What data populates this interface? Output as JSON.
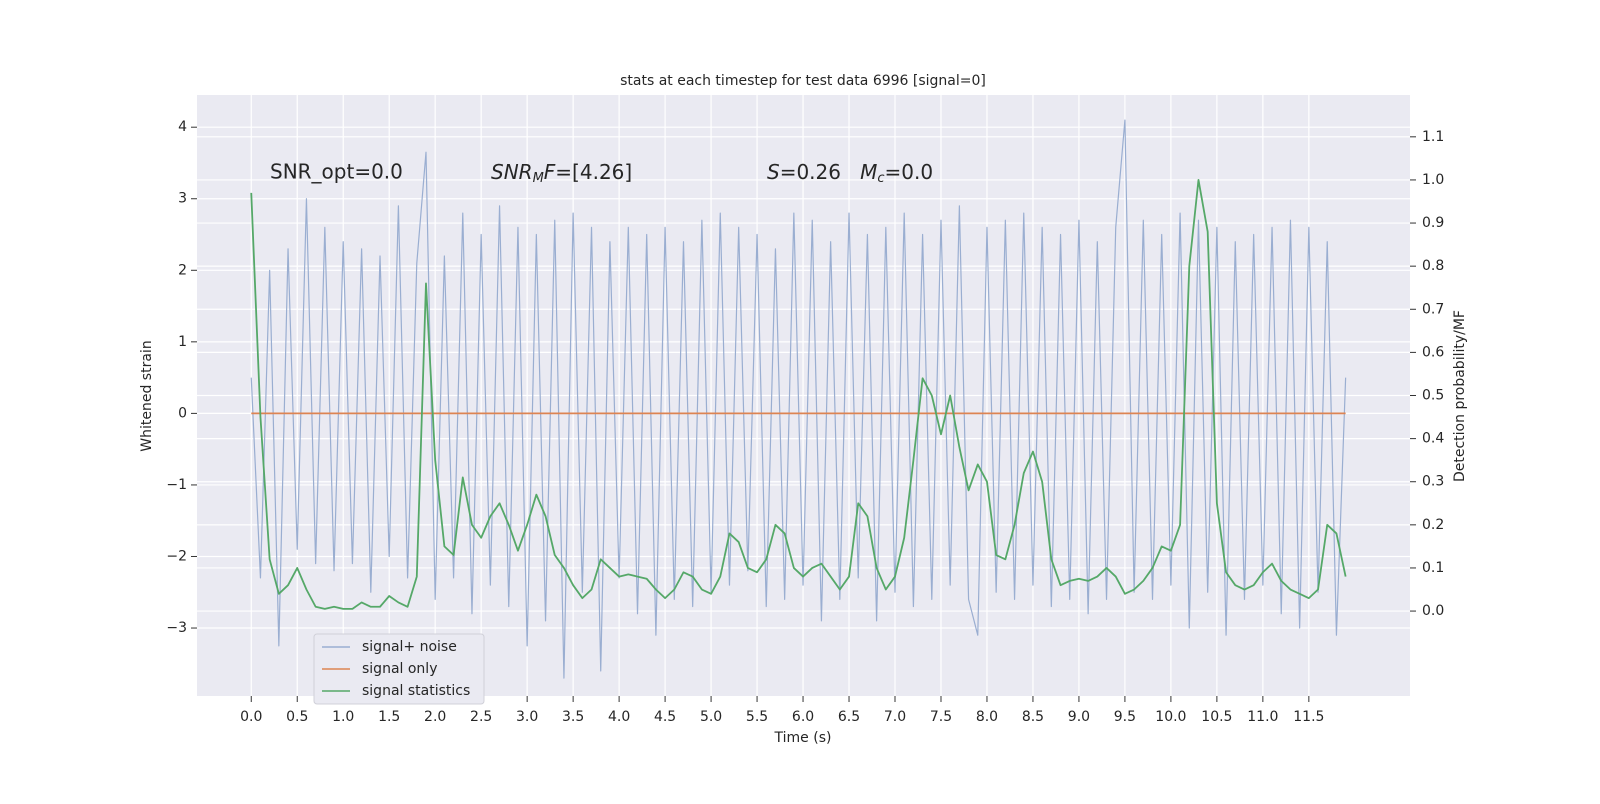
{
  "chart_data": {
    "type": "line",
    "title": "stats at each timestep for test data 6996 [signal=0]",
    "xlabel": "Time (s)",
    "ylabel": "Whitened strain",
    "y2label": "Detection probability/MF",
    "annotations": [
      "SNR_opt=0.0",
      [
        "SNR",
        "M",
        "F",
        "=[4.26]"
      ],
      [
        "S",
        "=0.26   ",
        "M",
        "c",
        "=0.0"
      ]
    ],
    "grid": true,
    "xlim": [
      -0.59,
      12.6
    ],
    "ylim": [
      -3.95,
      4.45
    ],
    "y2lim": [
      -0.197,
      1.197
    ],
    "xticks": [
      {
        "value": 0,
        "label": "0.0"
      },
      0.5,
      {
        "value": 1,
        "label": "1.0"
      },
      1.5,
      {
        "value": 2,
        "label": "2.0"
      },
      2.5,
      {
        "value": 3,
        "label": "3.0"
      },
      3.5,
      {
        "value": 4,
        "label": "4.0"
      },
      4.5,
      {
        "value": 5,
        "label": "5.0"
      },
      5.5,
      {
        "value": 6,
        "label": "6.0"
      },
      6.5,
      {
        "value": 7,
        "label": "7.0"
      },
      7.5,
      {
        "value": 8,
        "label": "8.0"
      },
      8.5,
      {
        "value": 9,
        "label": "9.0"
      },
      9.5,
      {
        "value": 10,
        "label": "10.0"
      },
      10.5,
      {
        "value": 11,
        "label": "11.0"
      },
      11.5
    ],
    "yticks": [
      {
        "value": -3,
        "label": "−3"
      },
      {
        "value": -2,
        "label": "−2"
      },
      {
        "value": -1,
        "label": "−1"
      },
      0,
      1,
      2,
      3,
      4
    ],
    "y2ticks": [
      {
        "value": 0,
        "label": "0.0"
      },
      0.1,
      0.2,
      0.3,
      0.4,
      0.5,
      0.6,
      0.7,
      0.8,
      0.9,
      {
        "value": 1,
        "label": "1.0"
      },
      1.1
    ],
    "x": [
      0,
      0.1,
      0.2,
      0.3,
      0.4,
      0.5,
      0.6,
      0.7,
      0.8,
      0.9,
      1,
      1.1,
      1.2,
      1.3,
      1.4,
      1.5,
      1.6,
      1.7,
      1.8,
      1.9,
      2,
      2.1,
      2.2,
      2.3,
      2.4,
      2.5,
      2.6,
      2.7,
      2.8,
      2.9,
      3,
      3.1,
      3.2,
      3.3,
      3.4,
      3.5,
      3.6,
      3.7,
      3.8,
      3.9,
      4,
      4.1,
      4.2,
      4.3,
      4.4,
      4.5,
      4.6,
      4.7,
      4.8,
      4.9,
      5,
      5.1,
      5.2,
      5.3,
      5.4,
      5.5,
      5.6,
      5.7,
      5.8,
      5.9,
      6,
      6.1,
      6.2,
      6.3,
      6.4,
      6.5,
      6.6,
      6.7,
      6.8,
      6.9,
      7,
      7.1,
      7.2,
      7.3,
      7.4,
      7.5,
      7.6,
      7.7,
      7.8,
      7.9,
      8,
      8.1,
      8.2,
      8.3,
      8.4,
      8.5,
      8.6,
      8.7,
      8.8,
      8.9,
      9,
      9.1,
      9.2,
      9.3,
      9.4,
      9.5,
      9.6,
      9.7,
      9.8,
      9.9,
      10,
      10.1,
      10.2,
      10.3,
      10.4,
      10.5,
      10.6,
      10.7,
      10.8,
      10.9,
      11,
      11.1,
      11.2,
      11.3,
      11.4,
      11.5,
      11.6,
      11.7,
      11.8,
      11.9
    ],
    "series": [
      {
        "name": "signal+ noise",
        "color": "#9aaed1",
        "values": [
          0.5,
          -2.3,
          2.0,
          -3.25,
          2.3,
          -1.9,
          3.0,
          -2.1,
          2.6,
          -2.2,
          2.4,
          -2.1,
          2.3,
          -2.5,
          2.2,
          -2.0,
          2.9,
          -2.3,
          2.1,
          3.65,
          -2.6,
          2.2,
          -2.3,
          2.8,
          -2.8,
          2.5,
          -2.4,
          2.9,
          -2.7,
          2.6,
          -3.25,
          2.5,
          -2.9,
          2.7,
          -3.7,
          2.8,
          -2.5,
          2.6,
          -3.6,
          2.4,
          -2.3,
          2.6,
          -2.8,
          2.5,
          -3.1,
          2.6,
          -2.6,
          2.4,
          -2.7,
          2.7,
          -2.5,
          2.8,
          -2.4,
          2.6,
          -2.2,
          2.5,
          -2.7,
          2.3,
          -2.6,
          2.8,
          -2.4,
          2.7,
          -2.9,
          2.4,
          -2.6,
          2.8,
          -2.3,
          2.5,
          -2.9,
          2.6,
          -2.5,
          2.8,
          -2.7,
          2.5,
          -2.6,
          2.7,
          -2.4,
          2.9,
          -2.6,
          -3.1,
          2.6,
          -2.5,
          2.7,
          -2.6,
          2.8,
          -2.4,
          2.6,
          -2.7,
          2.5,
          -2.6,
          2.7,
          -2.8,
          2.4,
          -2.6,
          2.6,
          4.1,
          -2.5,
          2.7,
          -2.6,
          2.5,
          -2.4,
          2.8,
          -3.0,
          2.7,
          -2.5,
          2.6,
          -3.1,
          2.4,
          -2.6,
          2.5,
          -2.4,
          2.6,
          -2.8,
          2.7,
          -3.0,
          2.6,
          -2.5,
          2.4,
          -3.1,
          0.5
        ]
      },
      {
        "name": "signal only",
        "color": "#dd8452",
        "values": [
          0,
          0,
          0,
          0,
          0,
          0,
          0,
          0,
          0,
          0,
          0,
          0,
          0,
          0,
          0,
          0,
          0,
          0,
          0,
          0,
          0,
          0,
          0,
          0,
          0,
          0,
          0,
          0,
          0,
          0,
          0,
          0,
          0,
          0,
          0,
          0,
          0,
          0,
          0,
          0,
          0,
          0,
          0,
          0,
          0,
          0,
          0,
          0,
          0,
          0,
          0,
          0,
          0,
          0,
          0,
          0,
          0,
          0,
          0,
          0,
          0,
          0,
          0,
          0,
          0,
          0,
          0,
          0,
          0,
          0,
          0,
          0,
          0,
          0,
          0,
          0,
          0,
          0,
          0,
          0,
          0,
          0,
          0,
          0,
          0,
          0,
          0,
          0,
          0,
          0,
          0,
          0,
          0,
          0,
          0,
          0,
          0,
          0,
          0,
          0,
          0,
          0,
          0,
          0,
          0,
          0,
          0,
          0,
          0,
          0,
          0,
          0,
          0,
          0,
          0,
          0,
          0,
          0,
          0,
          0
        ]
      },
      {
        "name": "signal statistics",
        "color": "#55a868",
        "axis": "y2",
        "values": [
          0.97,
          0.45,
          0.12,
          0.04,
          0.06,
          0.1,
          0.05,
          0.01,
          0.005,
          0.01,
          0.005,
          0.005,
          0.02,
          0.01,
          0.01,
          0.035,
          0.02,
          0.01,
          0.08,
          0.76,
          0.35,
          0.15,
          0.13,
          0.31,
          0.2,
          0.17,
          0.22,
          0.25,
          0.2,
          0.14,
          0.2,
          0.27,
          0.22,
          0.13,
          0.1,
          0.06,
          0.03,
          0.05,
          0.12,
          0.1,
          0.08,
          0.085,
          0.08,
          0.075,
          0.05,
          0.03,
          0.05,
          0.09,
          0.08,
          0.05,
          0.04,
          0.08,
          0.18,
          0.16,
          0.1,
          0.09,
          0.12,
          0.2,
          0.18,
          0.1,
          0.08,
          0.1,
          0.11,
          0.08,
          0.05,
          0.08,
          0.25,
          0.22,
          0.1,
          0.05,
          0.08,
          0.17,
          0.35,
          0.54,
          0.5,
          0.41,
          0.5,
          0.38,
          0.28,
          0.34,
          0.3,
          0.13,
          0.12,
          0.2,
          0.32,
          0.37,
          0.3,
          0.12,
          0.06,
          0.07,
          0.075,
          0.07,
          0.08,
          0.1,
          0.08,
          0.04,
          0.05,
          0.07,
          0.1,
          0.15,
          0.14,
          0.2,
          0.8,
          1.0,
          0.88,
          0.25,
          0.09,
          0.06,
          0.05,
          0.06,
          0.09,
          0.11,
          0.07,
          0.05,
          0.04,
          0.03,
          0.05,
          0.2,
          0.18,
          0.08
        ]
      }
    ]
  }
}
